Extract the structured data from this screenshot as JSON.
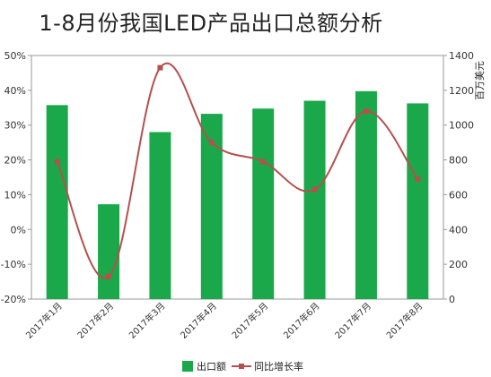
{
  "chart_data": {
    "type": "bar",
    "title": "1-8月份我国LED产品出口总额分析",
    "categories": [
      "2017年1月",
      "2017年2月",
      "2017年3月",
      "2017年4月",
      "2017年5月",
      "2017年6月",
      "2017年7月",
      "2017年8月"
    ],
    "series": [
      {
        "name": "出口额",
        "type": "bar",
        "axis": "right",
        "color": "#1aa84a",
        "values": [
          1115,
          545,
          960,
          1065,
          1095,
          1140,
          1195,
          1125
        ]
      },
      {
        "name": "同比增长率",
        "type": "line",
        "axis": "left",
        "unit": "%",
        "color": "#b5504e",
        "values": [
          19.5,
          -13.5,
          46.5,
          25,
          19.5,
          11.5,
          34,
          14.5
        ]
      }
    ],
    "y_left": {
      "ylim": [
        -20,
        50
      ],
      "ticks": [
        -20,
        -10,
        0,
        10,
        20,
        30,
        40,
        50
      ],
      "tick_labels": [
        "-20%",
        "-10%",
        "0%",
        "10%",
        "20%",
        "30%",
        "40%",
        "50%"
      ]
    },
    "y_right": {
      "label": "百万美元",
      "ylim": [
        0,
        1400
      ],
      "ticks": [
        0,
        200,
        400,
        600,
        800,
        1000,
        1200,
        1400
      ],
      "tick_labels": [
        "0",
        "200",
        "400",
        "600",
        "800",
        "1000",
        "1200",
        "1400"
      ]
    },
    "grid": false,
    "legend": {
      "position": "bottom",
      "items": [
        "出口额",
        "同比增长率"
      ]
    }
  }
}
